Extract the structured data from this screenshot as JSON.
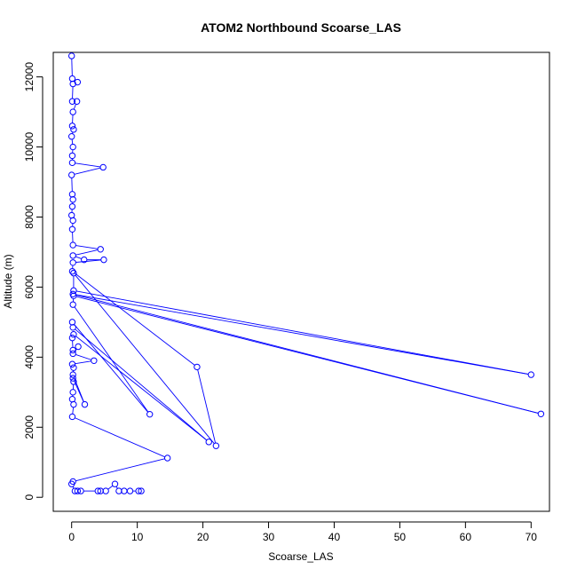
{
  "chart_data": {
    "type": "scatter",
    "title": "ATOM2 Northbound Scoarse_LAS",
    "xlabel": "Scoarse_LAS",
    "ylabel": "Altitude (m)",
    "xlim": [
      -2.8,
      72.8
    ],
    "ylim": [
      -400,
      12700
    ],
    "xticks": [
      0,
      10,
      20,
      30,
      40,
      50,
      60,
      70
    ],
    "yticks": [
      0,
      2000,
      4000,
      6000,
      8000,
      10000,
      12000
    ],
    "grid": false,
    "legend": "none",
    "colors": {
      "series": "#0000ff",
      "axis": "#000000",
      "background": "#ffffff"
    },
    "marker": "open-circle",
    "connected": true,
    "series": [
      {
        "points": [
          [
            0.0,
            12600
          ],
          [
            0.1,
            11950
          ],
          [
            0.9,
            11850
          ],
          [
            0.2,
            11800
          ],
          [
            0.1,
            11300
          ],
          [
            0.8,
            11300
          ],
          [
            0.2,
            11000
          ],
          [
            0.1,
            10600
          ],
          [
            0.3,
            10500
          ],
          [
            0.0,
            10300
          ],
          [
            0.2,
            10000
          ],
          [
            0.1,
            9750
          ],
          [
            0.1,
            9550
          ],
          [
            4.8,
            9420
          ],
          [
            0.0,
            9200
          ],
          [
            0.1,
            8650
          ],
          [
            0.2,
            8500
          ],
          [
            0.1,
            8300
          ],
          [
            0.0,
            8050
          ],
          [
            0.2,
            7900
          ],
          [
            0.1,
            7650
          ],
          [
            0.2,
            7200
          ],
          [
            4.4,
            7080
          ],
          [
            0.2,
            6900
          ],
          [
            1.9,
            6780
          ],
          [
            4.9,
            6780
          ],
          [
            0.2,
            6700
          ],
          [
            0.1,
            6450
          ],
          [
            19.1,
            3720
          ],
          [
            22.0,
            1470
          ],
          [
            0.3,
            6400
          ],
          [
            0.3,
            5900
          ],
          [
            70.0,
            3500
          ],
          [
            0.2,
            5800
          ],
          [
            71.5,
            2380
          ],
          [
            0.3,
            5750
          ],
          [
            0.2,
            5500
          ],
          [
            11.9,
            2370
          ],
          [
            0.1,
            5000
          ],
          [
            0.2,
            4850
          ],
          [
            20.9,
            1580
          ],
          [
            0.3,
            4650
          ],
          [
            0.1,
            4550
          ],
          [
            0.2,
            4200
          ],
          [
            1.0,
            4300
          ],
          [
            0.2,
            4100
          ],
          [
            3.4,
            3900
          ],
          [
            0.1,
            3800
          ],
          [
            0.3,
            3700
          ],
          [
            0.2,
            3500
          ],
          [
            2.0,
            2650
          ],
          [
            0.2,
            3400
          ],
          [
            0.3,
            3300
          ],
          [
            0.2,
            3000
          ],
          [
            0.1,
            2800
          ],
          [
            0.3,
            2650
          ],
          [
            0.1,
            2300
          ],
          [
            14.6,
            1120
          ],
          [
            0.2,
            450
          ],
          [
            0.0,
            380
          ],
          [
            0.5,
            180
          ],
          [
            0.9,
            180
          ],
          [
            1.4,
            180
          ],
          [
            4.0,
            180
          ],
          [
            4.4,
            180
          ],
          [
            5.2,
            180
          ],
          [
            6.6,
            380
          ],
          [
            7.2,
            180
          ],
          [
            8.0,
            180
          ],
          [
            8.9,
            180
          ],
          [
            10.2,
            180
          ],
          [
            10.6,
            180
          ]
        ]
      }
    ]
  }
}
